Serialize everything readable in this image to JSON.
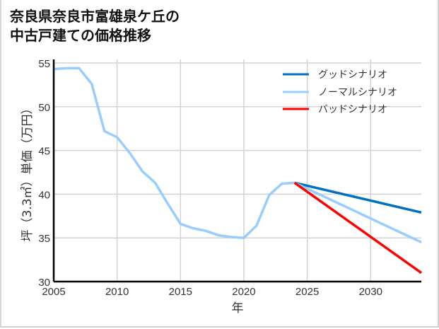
{
  "title_line1": "奈良県奈良市富雄泉ケ丘の",
  "title_line2": "中古戸建ての価格推移",
  "chart_data": {
    "type": "line",
    "title": "奈良県奈良市富雄泉ケ丘の中古戸建ての価格推移",
    "xlabel": "年",
    "ylabel": "坪（3.3㎡）単価（万円）",
    "xlim": [
      2005,
      2034
    ],
    "ylim": [
      30,
      55
    ],
    "xticks": [
      2005,
      2010,
      2015,
      2020,
      2025,
      2030
    ],
    "yticks": [
      30,
      35,
      40,
      45,
      50,
      55
    ],
    "grid": true,
    "legend_position": "upper right",
    "colors": {
      "good": "#0070c0",
      "normal": "#99ccff",
      "bad": "#ff0000"
    },
    "series": [
      {
        "name": "ノーマルシナリオ",
        "x": [
          2005,
          2006,
          2007,
          2008,
          2009,
          2010,
          2011,
          2012,
          2013,
          2014,
          2015,
          2016,
          2017,
          2018,
          2019,
          2020,
          2021,
          2022,
          2023,
          2024,
          2034
        ],
        "values": [
          54.3,
          54.4,
          54.4,
          52.6,
          47.2,
          46.5,
          44.7,
          42.6,
          41.3,
          38.9,
          36.6,
          36.1,
          35.8,
          35.3,
          35.1,
          35.0,
          36.4,
          39.9,
          41.2,
          41.3,
          34.5
        ]
      },
      {
        "name": "グッドシナリオ",
        "x": [
          2024,
          2034
        ],
        "values": [
          41.3,
          37.9
        ]
      },
      {
        "name": "バッドシナリオ",
        "x": [
          2024,
          2034
        ],
        "values": [
          41.3,
          31.0
        ]
      }
    ]
  },
  "legend": [
    "グッドシナリオ",
    "ノーマルシナリオ",
    "バッドシナリオ"
  ]
}
